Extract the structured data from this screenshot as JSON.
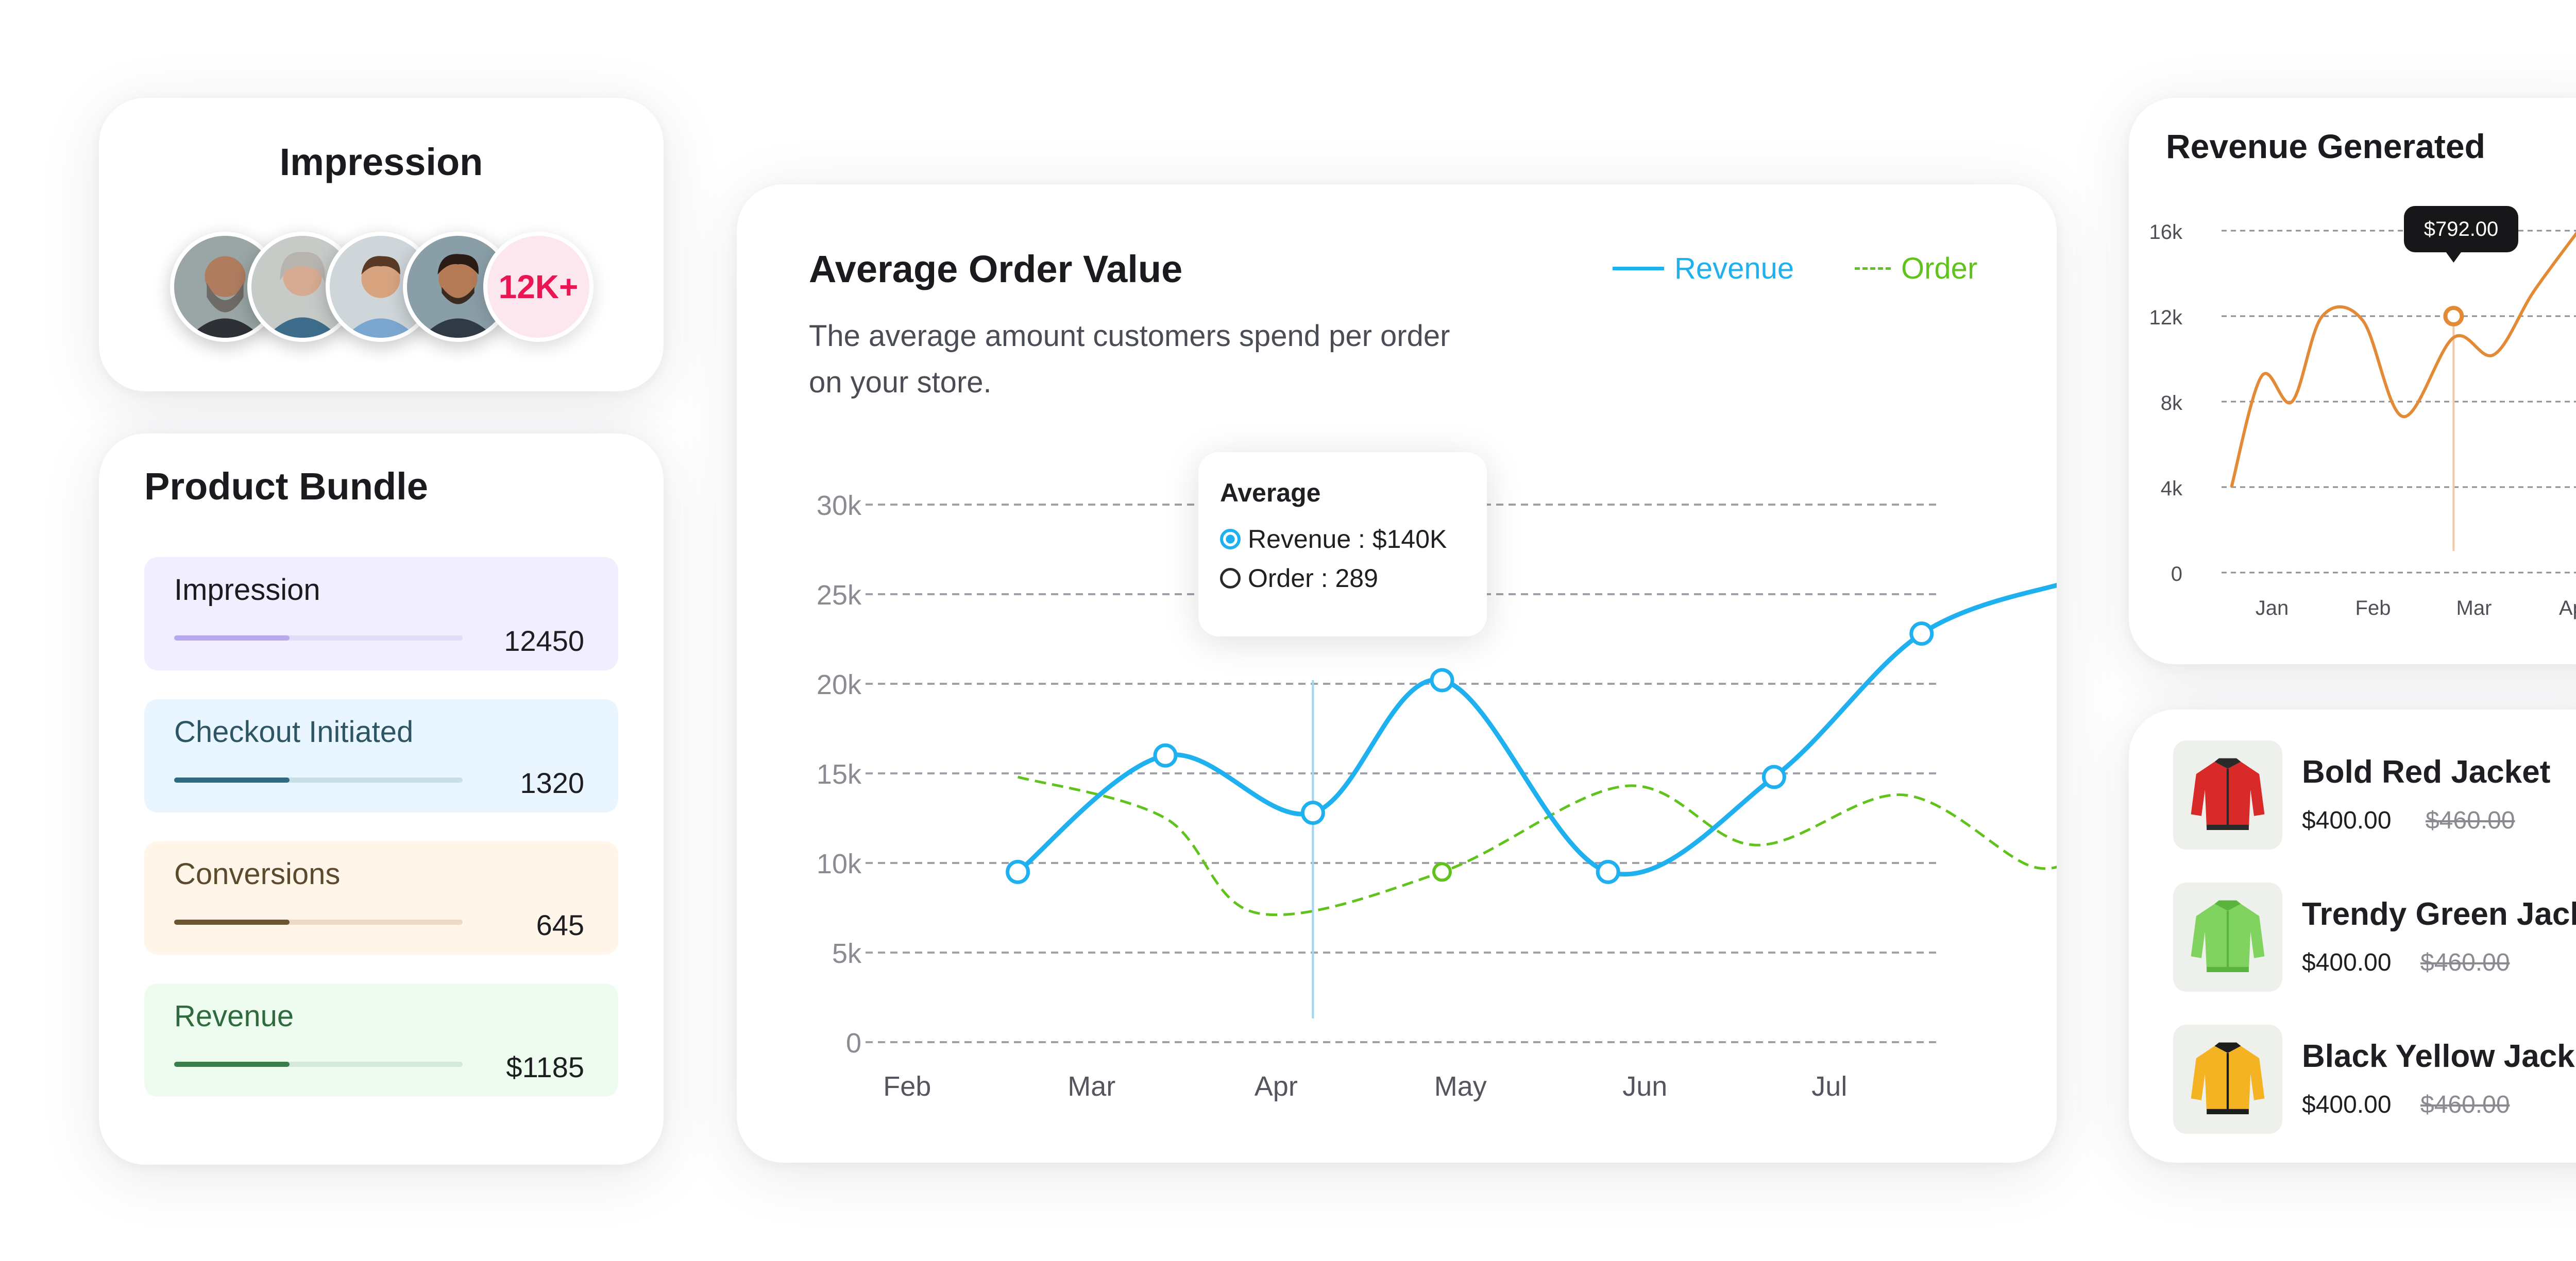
{
  "impression": {
    "title": "Impression",
    "avatars": [
      "avatar-1",
      "avatar-2",
      "avatar-3",
      "avatar-4"
    ],
    "count": "12K+"
  },
  "bundle": {
    "title": "Product Bundle",
    "items": [
      {
        "label": "Impression",
        "value": "12450",
        "progress": 0.4,
        "bg": "#f1efff",
        "track": "#e3dcf6",
        "fill": "#b8a8ee",
        "label_color": "#1b1b1f"
      },
      {
        "label": "Checkout Initiated",
        "value": "1320",
        "progress": 0.4,
        "bg": "#eaf6ff",
        "track": "#c8dfe6",
        "fill": "#2e6a80",
        "label_color": "#2d5563"
      },
      {
        "label": "Conversions",
        "value": "645",
        "progress": 0.4,
        "bg": "#fff6e9",
        "track": "#ecd9c8",
        "fill": "#6b5533",
        "label_color": "#5c4a2e"
      },
      {
        "label": "Revenue",
        "value": "$1185",
        "progress": 0.4,
        "bg": "#eefcf0",
        "track": "#d5e9d8",
        "fill": "#3c7d4c",
        "label_color": "#2f6a3e"
      }
    ]
  },
  "aov": {
    "title": "Average Order Value",
    "description": "The average amount customers spend per order on your store.",
    "legend": {
      "revenue": "Revenue",
      "order": "Order"
    },
    "tooltip": {
      "title": "Average",
      "revenue": "Revenue : $140K",
      "order": "Order : 289"
    },
    "colors": {
      "revenue": "#1fb0ef",
      "order": "#5fc31b"
    }
  },
  "revenue_generated": {
    "title": "Revenue Generated",
    "badge": "$792.00",
    "color": "#e28a35"
  },
  "products": [
    {
      "name": "Bold Red Jacket",
      "price": "$400.00",
      "old_price": "$460.00",
      "icon": "red-jacket-icon",
      "colors": [
        "#d92a2a",
        "#2a2a2a"
      ]
    },
    {
      "name": "Trendy Green Jacket",
      "price": "$400.00",
      "old_price": "$460.00",
      "icon": "green-jacket-icon",
      "colors": [
        "#7fd35e",
        "#5ab53f"
      ]
    },
    {
      "name": "Black Yellow Jacket",
      "price": "$400.00",
      "old_price": "$460.00",
      "icon": "black-yellow-jacket-icon",
      "colors": [
        "#f4b322",
        "#1d1d1d"
      ]
    }
  ],
  "chart_data": [
    {
      "type": "line",
      "title": "Average Order Value",
      "x": [
        "Feb",
        "Mar",
        "Apr",
        "May",
        "Jun",
        "Jul"
      ],
      "ylim": [
        0,
        30000
      ],
      "yticks": [
        "0",
        "5k",
        "10k",
        "15k",
        "20k",
        "25k",
        "30k"
      ],
      "grid": true,
      "legend_position": "top-right",
      "series": [
        {
          "name": "Revenue",
          "x": [
            1.7,
            2.5,
            3.3,
            4.0,
            4.9,
            5.8,
            6.6,
            7.4
          ],
          "values": [
            9500,
            16000,
            12800,
            20200,
            9500,
            14800,
            22800,
            25700
          ],
          "markers": true
        },
        {
          "name": "Order",
          "x": [
            1.7,
            2.5,
            3.0,
            4.0,
            5.0,
            5.7,
            6.5,
            7.2,
            7.5
          ],
          "values": [
            14800,
            12500,
            7200,
            9500,
            14300,
            11000,
            13800,
            9800,
            10800
          ],
          "markers": false
        }
      ]
    },
    {
      "type": "line",
      "title": "Revenue Generated",
      "x": [
        "Jan",
        "Feb",
        "Mar",
        "Apr"
      ],
      "ylim": [
        0,
        16000
      ],
      "yticks": [
        "0",
        "4k",
        "8k",
        "12k",
        "16k"
      ],
      "grid": true,
      "series": [
        {
          "name": "Revenue",
          "x": [
            0.7,
            1.0,
            1.3,
            1.6,
            2.0,
            2.4,
            2.9,
            3.3,
            3.7,
            4.2
          ],
          "values": [
            4000,
            9200,
            8000,
            12000,
            11800,
            7300,
            11000,
            10200,
            13200,
            16400
          ]
        }
      ]
    }
  ]
}
